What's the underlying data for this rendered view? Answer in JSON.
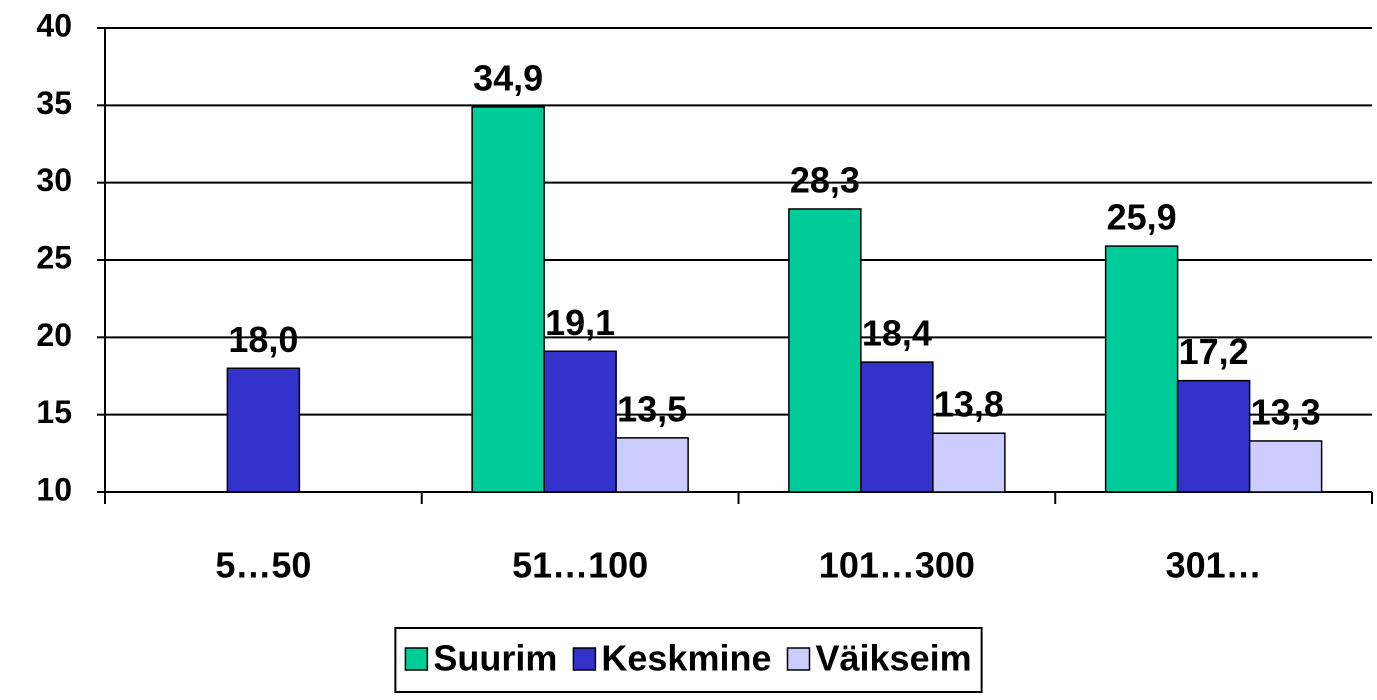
{
  "chart_data": {
    "type": "bar",
    "categories": [
      "5…50",
      "51…100",
      "101…300",
      "301…"
    ],
    "series": [
      {
        "name": "Suurim",
        "color": "#00cc99",
        "values": [
          null,
          34.9,
          28.3,
          25.9
        ],
        "value_labels": [
          null,
          "34,9",
          "28,3",
          "25,9"
        ]
      },
      {
        "name": "Keskmine",
        "color": "#3333cc",
        "values": [
          18.0,
          19.1,
          18.4,
          17.2
        ],
        "value_labels": [
          "18,0",
          "19,1",
          "18,4",
          "17,2"
        ]
      },
      {
        "name": "Väikseim",
        "color": "#ccccff",
        "values": [
          null,
          13.5,
          13.8,
          13.3
        ],
        "value_labels": [
          null,
          "13,5",
          "13,8",
          "13,3"
        ]
      }
    ],
    "ylim": [
      10,
      40
    ],
    "yticks": [
      10,
      15,
      20,
      25,
      30,
      35,
      40
    ],
    "grid": true,
    "legend": "bottom"
  }
}
